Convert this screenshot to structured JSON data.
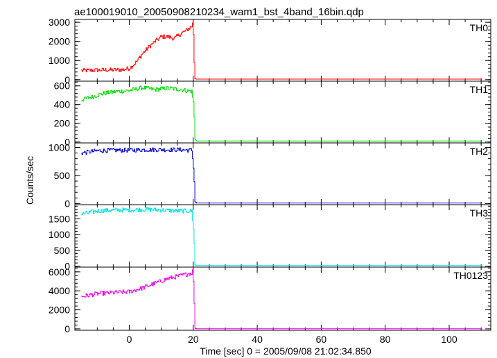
{
  "chart_data": {
    "type": "line",
    "title": "ae100019010_20050908210234_wam1_bst_4band_16bin.qdp",
    "xlabel": "Time [sec] 0 = 2005/09/08 21:02:34.850",
    "ylabel": "Counts/sec",
    "xlim": [
      -17,
      113
    ],
    "xticks": [
      0,
      20,
      40,
      60,
      80,
      100
    ],
    "grid": false,
    "panels": [
      {
        "name": "TH0",
        "color": "#ff0000",
        "ylim": [
          -80,
          3150
        ],
        "yticks": [
          0,
          1000,
          2000,
          3000
        ],
        "series_points": [
          [
            -15,
            470
          ],
          [
            -10,
            500
          ],
          [
            -5,
            510
          ],
          [
            -2,
            520
          ],
          [
            0,
            600
          ],
          [
            2,
            900
          ],
          [
            4,
            1350
          ],
          [
            6,
            1700
          ],
          [
            8,
            2000
          ],
          [
            10,
            2250
          ],
          [
            12,
            2250
          ],
          [
            14,
            2150
          ],
          [
            16,
            2400
          ],
          [
            18,
            2600
          ],
          [
            19.5,
            2800
          ],
          [
            19.9,
            3000
          ],
          [
            20.1,
            1800
          ],
          [
            20.4,
            50
          ],
          [
            21,
            30
          ],
          [
            110,
            30
          ]
        ]
      },
      {
        "name": "TH1",
        "color": "#00dd00",
        "ylim": [
          -10,
          650
        ],
        "yticks": [
          0,
          200,
          400,
          600
        ],
        "series_points": [
          [
            -15,
            450
          ],
          [
            -12,
            480
          ],
          [
            -8,
            520
          ],
          [
            -4,
            540
          ],
          [
            0,
            550
          ],
          [
            4,
            580
          ],
          [
            8,
            560
          ],
          [
            12,
            575
          ],
          [
            16,
            560
          ],
          [
            19.5,
            540
          ],
          [
            20.1,
            400
          ],
          [
            20.5,
            30
          ],
          [
            21,
            10
          ],
          [
            110,
            10
          ]
        ]
      },
      {
        "name": "TH2",
        "color": "#0000cc",
        "ylim": [
          -20,
          1080
        ],
        "yticks": [
          0,
          500,
          1000
        ],
        "series_points": [
          [
            -15,
            900
          ],
          [
            -10,
            940
          ],
          [
            -5,
            950
          ],
          [
            0,
            950
          ],
          [
            5,
            960
          ],
          [
            10,
            960
          ],
          [
            15,
            960
          ],
          [
            19.5,
            950
          ],
          [
            20.1,
            600
          ],
          [
            20.5,
            30
          ],
          [
            21,
            10
          ],
          [
            110,
            10
          ]
        ]
      },
      {
        "name": "TH3",
        "color": "#00e5e5",
        "ylim": [
          -30,
          1950
        ],
        "yticks": [
          0,
          500,
          1000,
          1500
        ],
        "series_points": [
          [
            -15,
            1650
          ],
          [
            -10,
            1750
          ],
          [
            -5,
            1780
          ],
          [
            0,
            1780
          ],
          [
            5,
            1800
          ],
          [
            10,
            1780
          ],
          [
            15,
            1750
          ],
          [
            19.5,
            1750
          ],
          [
            20.1,
            1100
          ],
          [
            20.5,
            40
          ],
          [
            21,
            20
          ],
          [
            110,
            20
          ]
        ]
      },
      {
        "name": "TH0123",
        "color": "#ee00ee",
        "ylim": [
          -150,
          6500
        ],
        "yticks": [
          0,
          2000,
          4000,
          6000
        ],
        "series_points": [
          [
            -15,
            3400
          ],
          [
            -10,
            3700
          ],
          [
            -5,
            3800
          ],
          [
            0,
            3900
          ],
          [
            4,
            4300
          ],
          [
            8,
            4800
          ],
          [
            12,
            5300
          ],
          [
            16,
            5600
          ],
          [
            19.5,
            5900
          ],
          [
            19.9,
            6200
          ],
          [
            20.1,
            4000
          ],
          [
            20.5,
            50
          ],
          [
            21,
            20
          ],
          [
            110,
            20
          ]
        ]
      }
    ]
  }
}
